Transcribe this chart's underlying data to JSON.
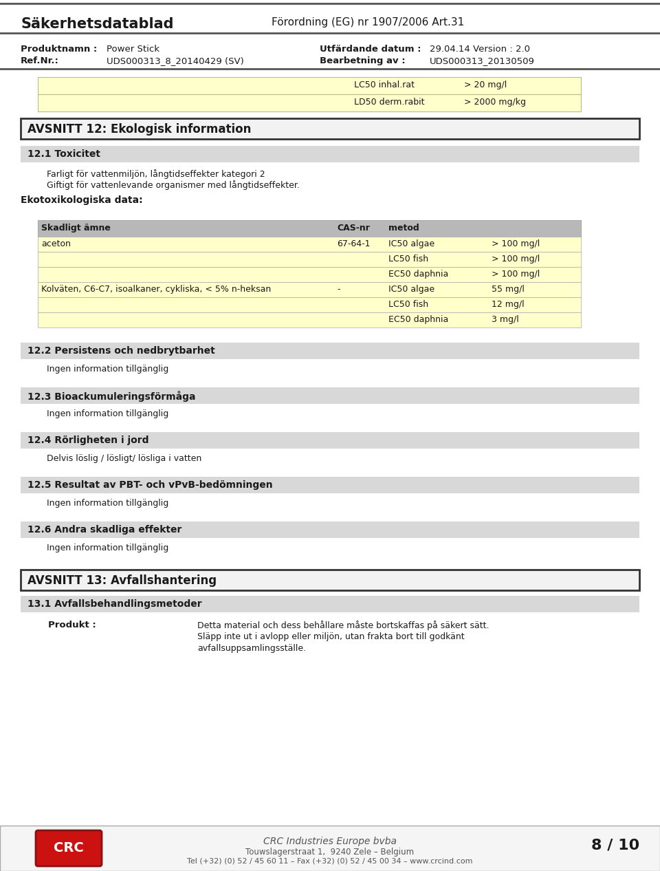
{
  "bg_color": "#ffffff",
  "header": {
    "title_left": "Säkerhetsdatablad",
    "title_right": "Förordning (EG) nr 1907/2006 Art.31",
    "row1_label1": "Produktnamn :",
    "row1_val1": "Power Stick",
    "row1_label2": "Utfärdande datum :",
    "row1_val2": "29.04.14 Version : 2.0",
    "row2_label1": "Ref.Nr.:",
    "row2_val1": "UDS000313_8_20140429 (SV)",
    "row2_label2": "Bearbetning av :",
    "row2_val2": "UDS000313_20130509"
  },
  "top_table_bg": "#ffffcc",
  "top_table_border": "#bbbb88",
  "top_rows": [
    [
      "LC50 inhal.rat",
      "> 20 mg/l"
    ],
    [
      "LD50 derm.rabit",
      "> 2000 mg/kg"
    ]
  ],
  "section12_title": "AVSNITT 12: Ekologisk information",
  "section12_1_title": "12.1 Toxicitet",
  "toxicitet_text1": "Farligt för vattenmiljön, långtidseffekter kategori 2",
  "toxicitet_text2": "Giftigt för vattenlevande organismer med långtidseffekter.",
  "ekotox_label": "Ekotoxikologiska data:",
  "eco_header": [
    "Skadligt ämne",
    "CAS-nr",
    "metod",
    ""
  ],
  "eco_header_bg": "#b8b8b8",
  "eco_row_bg": "#ffffcc",
  "eco_border": "#aaaaaa",
  "eco_rows": [
    [
      "aceton",
      "67-64-1",
      "IC50 algae",
      "> 100 mg/l"
    ],
    [
      "",
      "",
      "LC50 fish",
      "> 100 mg/l"
    ],
    [
      "",
      "",
      "EC50 daphnia",
      "> 100 mg/l"
    ],
    [
      "Kolväten, C6-C7, isoalkaner, cykliska, < 5% n-heksan",
      "-",
      "IC50 algae",
      "55 mg/l"
    ],
    [
      "",
      "",
      "LC50 fish",
      "12 mg/l"
    ],
    [
      "",
      "",
      "EC50 daphnia",
      "3 mg/l"
    ]
  ],
  "sections": [
    {
      "title": "12.2 Persistens och nedbrytbarhet",
      "text": "Ingen information tillgänglig"
    },
    {
      "title": "12.3 Bioackumuleringsförmåga",
      "text": "Ingen information tillgänglig"
    },
    {
      "title": "12.4 Rörligheten i jord",
      "text": "Delvis löslig / lösligt/ lösliga i vatten"
    },
    {
      "title": "12.5 Resultat av PBT- och vPvB-bedömningen",
      "text": "Ingen information tillgänglig"
    },
    {
      "title": "12.6 Andra skadliga effekter",
      "text": "Ingen information tillgänglig"
    }
  ],
  "section13_title": "AVSNITT 13: Avfallshantering",
  "section13_1_title": "13.1 Avfallsbehandlingsmetoder",
  "produkt_label": "Produkt :",
  "produkt_text": [
    "Detta material och dess behållare måste bortskaffas på säkert sätt.",
    "Släpp inte ut i avlopp eller miljön, utan frakta bort till godkänt",
    "avfallsuppsamlingsställe."
  ],
  "footer_company": "CRC Industries Europe bvba",
  "footer_address": "Touwslagerstraat 1,  9240 Zele – Belgium",
  "footer_phone": "Tel (+32) (0) 52 / 45 60 11 – Fax (+32) (0) 52 / 45 00 34 – www.crcind.com",
  "footer_page": "8 / 10",
  "section_hdr_bg": "#d8d8d8",
  "main_border_color": "#555555",
  "box_border_color": "#333333"
}
